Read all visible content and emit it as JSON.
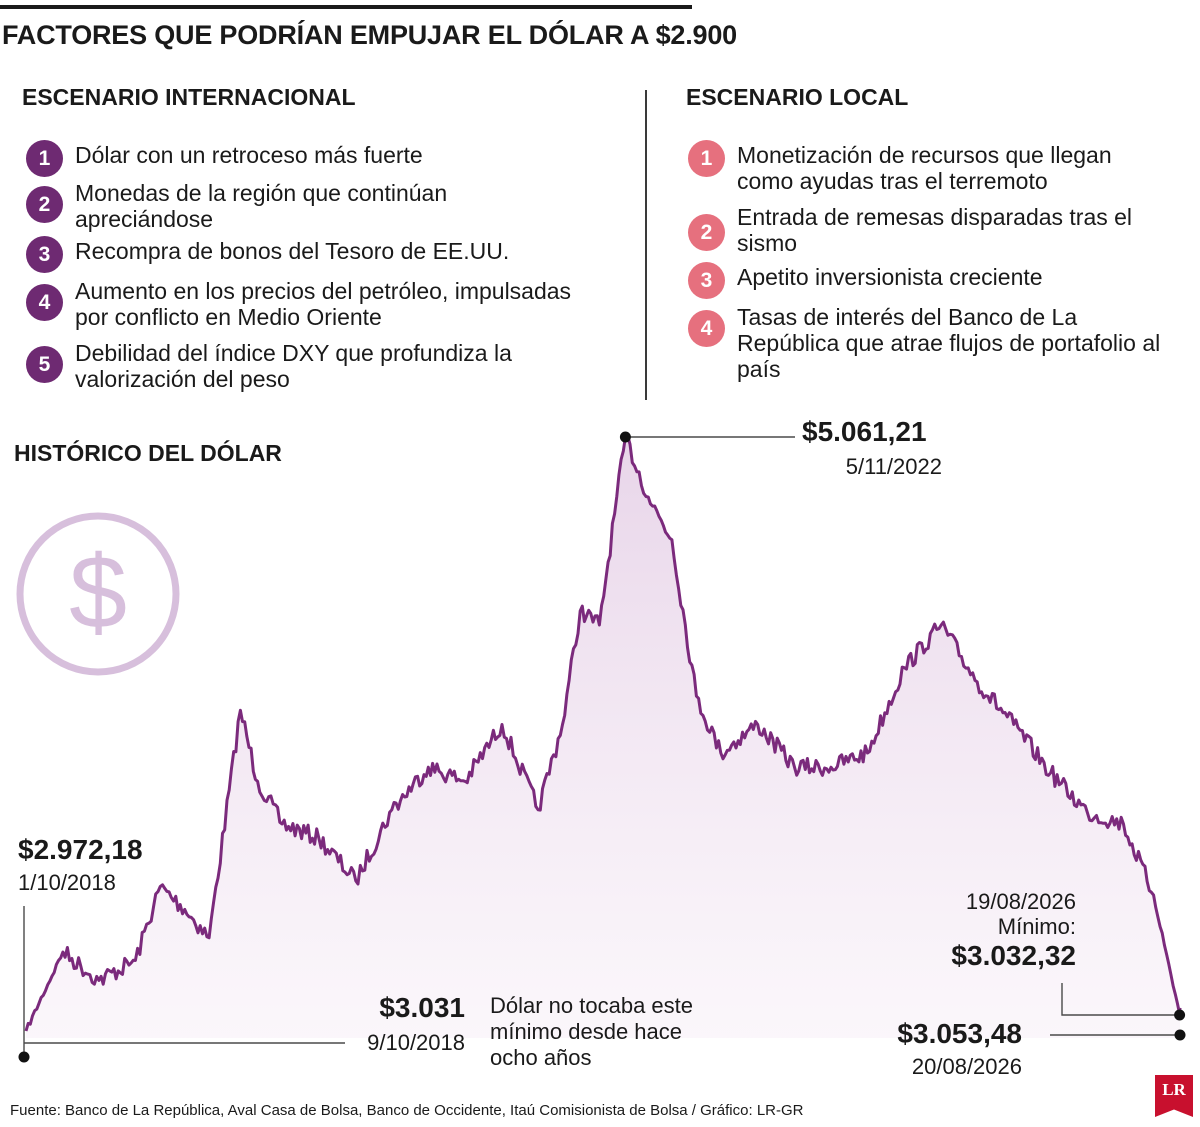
{
  "header": {
    "title": "FACTORES QUE PODRÍAN EMPUJAR EL DÓLAR A $2.900"
  },
  "international": {
    "heading": "ESCENARIO INTERNACIONAL",
    "items": [
      {
        "n": "1",
        "text": "Dólar con un retroceso más fuerte"
      },
      {
        "n": "2",
        "text": "Monedas de la región que continúan apreciándose"
      },
      {
        "n": "3",
        "text": "Recompra de bonos del Tesoro de EE.UU."
      },
      {
        "n": "4",
        "text": "Aumento en los precios del petróleo, impulsadas por conflicto en Medio Oriente"
      },
      {
        "n": "5",
        "text": "Debilidad del índice DXY que profundiza la valorización del peso"
      }
    ],
    "accent": "#6e2a72"
  },
  "local": {
    "heading": "ESCENARIO LOCAL",
    "items": [
      {
        "n": "1",
        "text": "Monetización de recursos que llegan como ayudas tras el terremoto"
      },
      {
        "n": "2",
        "text": "Entrada de remesas disparadas tras el sismo"
      },
      {
        "n": "3",
        "text": "Apetito inversionista creciente"
      },
      {
        "n": "4",
        "text": "Tasas de interés del Banco de La República que atrae flujos de portafolio al país"
      }
    ],
    "accent": "#e6707e"
  },
  "section": {
    "title": "HISTÓRICO DEL DÓLAR",
    "icon": "dollar-icon"
  },
  "chart_data": {
    "type": "area",
    "title": "HISTÓRICO DEL DÓLAR",
    "line_color": "#7b2a7c",
    "fill_color": "#efe1ef",
    "x": [
      "2018-10-01",
      "2019-01-01",
      "2019-04-01",
      "2019-07-01",
      "2019-09-01",
      "2019-11-01",
      "2020-01-01",
      "2020-03-19",
      "2020-05-01",
      "2020-07-01",
      "2020-10-01",
      "2021-01-01",
      "2021-04-01",
      "2021-07-01",
      "2021-10-01",
      "2022-01-01",
      "2022-04-01",
      "2022-06-01",
      "2022-07-15",
      "2022-09-01",
      "2022-11-05",
      "2023-01-01",
      "2023-03-01",
      "2023-05-01",
      "2023-07-01",
      "2023-10-01",
      "2024-01-01",
      "2024-04-01",
      "2024-07-01",
      "2024-10-01",
      "2025-01-01",
      "2025-04-01",
      "2025-07-01",
      "2025-10-01",
      "2026-01-01",
      "2026-04-01",
      "2026-06-15",
      "2026-08-19",
      "2026-08-20"
    ],
    "y": [
      2972.18,
      3250,
      3150,
      3220,
      3480,
      3400,
      3300,
      4100,
      3850,
      3700,
      3650,
      3500,
      3750,
      3900,
      3850,
      4050,
      3750,
      4050,
      4450,
      4400,
      5061.21,
      4850,
      4700,
      4150,
      3950,
      4050,
      3900,
      3900,
      3950,
      4250,
      4400,
      4200,
      4050,
      3880,
      3740,
      3700,
      3450,
      3032.32,
      3053.48
    ],
    "annotations": [
      {
        "value": "$2.972,18",
        "date": "1/10/2018"
      },
      {
        "value": "$3.031",
        "date": "9/10/2018"
      },
      {
        "value": "$5.061,21",
        "date": "5/11/2022"
      },
      {
        "value": "$3.032,32",
        "date": "19/08/2026",
        "prefix": "Mínimo:"
      },
      {
        "value": "$3.053,48",
        "date": "20/08/2026"
      }
    ],
    "note": "Dólar no tocaba este mínimo desde hace ocho años"
  },
  "footer": {
    "source": "Fuente: Banco de La República, Aval Casa de Bolsa, Banco de Occidente, Itaú Comisionista de Bolsa / Gráfico: LR-GR"
  },
  "logo": {
    "text": "LR"
  }
}
